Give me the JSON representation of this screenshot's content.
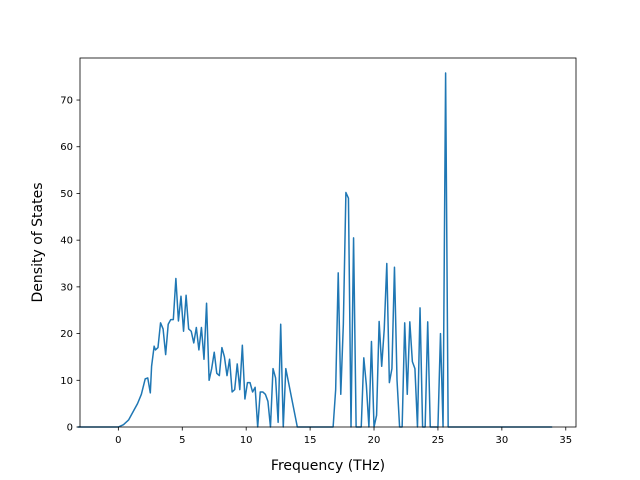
{
  "chart_data": {
    "type": "line",
    "title": "",
    "xlabel": "Frequency (THz)",
    "ylabel": "Density of States",
    "xlim": [
      -3.0,
      35.8
    ],
    "ylim": [
      0,
      79.0
    ],
    "xticks": [
      0,
      5,
      10,
      15,
      20,
      25,
      30,
      35
    ],
    "xtick_labels": [
      "0",
      "5",
      "10",
      "15",
      "20",
      "25",
      "30",
      "35"
    ],
    "yticks": [
      0,
      10,
      20,
      30,
      40,
      50,
      60,
      70
    ],
    "ytick_labels": [
      "0",
      "10",
      "20",
      "30",
      "40",
      "50",
      "60",
      "70"
    ],
    "grid": false,
    "legend": "none",
    "series": [
      {
        "color": "#1f77b4",
        "x": [
          -3.15,
          -2.0,
          -1.0,
          0.0,
          0.4,
          0.8,
          1.2,
          1.5,
          1.8,
          2.1,
          2.3,
          2.5,
          2.6,
          2.8,
          2.9,
          3.1,
          3.3,
          3.5,
          3.7,
          3.9,
          4.1,
          4.3,
          4.5,
          4.7,
          4.9,
          5.1,
          5.3,
          5.5,
          5.7,
          5.9,
          6.1,
          6.3,
          6.5,
          6.7,
          6.9,
          7.1,
          7.3,
          7.5,
          7.7,
          7.9,
          8.1,
          8.3,
          8.5,
          8.7,
          8.9,
          9.1,
          9.3,
          9.5,
          9.7,
          9.9,
          10.1,
          10.3,
          10.5,
          10.7,
          10.9,
          11.1,
          11.3,
          11.5,
          11.7,
          11.9,
          12.1,
          12.3,
          12.5,
          12.7,
          12.9,
          13.1,
          14.0,
          15.0,
          16.0,
          16.8,
          17.0,
          17.2,
          17.4,
          17.6,
          17.8,
          18.0,
          18.2,
          18.4,
          18.6,
          18.8,
          19.0,
          19.2,
          19.4,
          19.6,
          19.8,
          20.0,
          20.2,
          20.4,
          20.6,
          20.8,
          21.0,
          21.2,
          21.4,
          21.6,
          21.8,
          22.0,
          22.2,
          22.4,
          22.6,
          22.8,
          23.0,
          23.2,
          23.4,
          23.6,
          23.8,
          24.0,
          24.2,
          24.4,
          24.6,
          24.8,
          25.0,
          25.2,
          25.4,
          25.6,
          25.8,
          26.0,
          26.2,
          27.0,
          30.0,
          33.9
        ],
        "y": [
          0.0,
          0.0,
          0.0,
          0.0,
          0.5,
          1.5,
          3.5,
          5.0,
          7.0,
          10.3,
          10.5,
          7.3,
          13.0,
          17.3,
          16.5,
          17.0,
          22.3,
          21.0,
          15.5,
          22.0,
          23.0,
          23.0,
          31.8,
          22.7,
          28.0,
          20.5,
          28.2,
          21.0,
          20.5,
          18.0,
          21.3,
          16.5,
          21.3,
          14.5,
          26.5,
          10.0,
          12.5,
          16.0,
          11.5,
          11.0,
          17.0,
          15.0,
          11.0,
          14.5,
          7.5,
          8.0,
          13.5,
          8.0,
          17.5,
          6.0,
          9.5,
          9.5,
          7.5,
          8.5,
          0.0,
          7.5,
          7.5,
          7.0,
          5.5,
          0.0,
          12.5,
          10.5,
          1.0,
          22.0,
          0.0,
          12.5,
          0.0,
          0.0,
          0.0,
          0.0,
          8.0,
          33.0,
          7.0,
          22.0,
          50.2,
          49.0,
          0.0,
          40.5,
          0.0,
          0.0,
          0.0,
          14.8,
          9.0,
          0.0,
          18.3,
          0.0,
          2.5,
          22.6,
          13.0,
          21.0,
          35.0,
          9.5,
          12.5,
          34.2,
          10.0,
          0.0,
          0.0,
          22.3,
          7.0,
          22.5,
          14.0,
          12.5,
          0.0,
          25.5,
          0.0,
          0.0,
          22.5,
          0.0,
          0.0,
          0.0,
          0.0,
          20.0,
          0.0,
          75.8,
          0.0,
          0.0,
          0.0,
          0.0,
          0.0,
          0.0
        ]
      }
    ]
  }
}
